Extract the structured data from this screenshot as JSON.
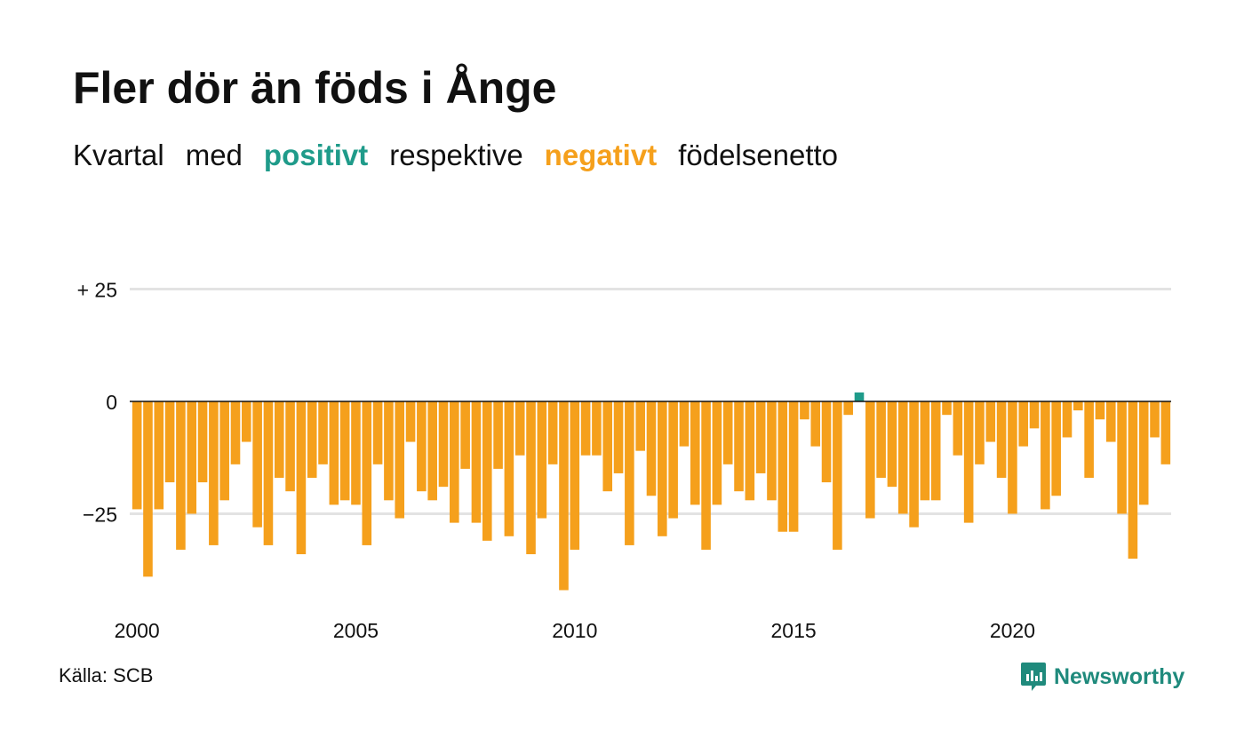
{
  "title": "Fler dör än föds i Ånge",
  "subtitle": {
    "part1": "Kvartal",
    "part2": "med",
    "positive": "positivt",
    "part3": "respektive",
    "negative": "negativt",
    "part4": "födelsenetto"
  },
  "source": "Källa: SCB",
  "brand": "Newsworthy",
  "colors": {
    "positive": "#1f9b8a",
    "negative": "#f5a01c",
    "grid": "#e3e3e3",
    "brand": "#1f8a7c"
  },
  "chart_data": {
    "type": "bar",
    "x_start": "2000 Q1",
    "frequency": "quarterly",
    "ylim": [
      -42,
      25
    ],
    "yticks": [
      25,
      0,
      -25
    ],
    "ytick_labels": [
      "+ 25",
      "0",
      "−25"
    ],
    "xtick_labels": [
      "2000",
      "2005",
      "2010",
      "2015",
      "2020"
    ],
    "values": [
      -24,
      -39,
      -24,
      -18,
      -33,
      -25,
      -18,
      -32,
      -22,
      -14,
      -9,
      -28,
      -32,
      -17,
      -20,
      -34,
      -17,
      -14,
      -23,
      -22,
      -23,
      -32,
      -14,
      -22,
      -26,
      -9,
      -20,
      -22,
      -19,
      -27,
      -15,
      -27,
      -31,
      -15,
      -30,
      -12,
      -34,
      -26,
      -14,
      -42,
      -33,
      -12,
      -12,
      -20,
      -16,
      -32,
      -11,
      -21,
      -30,
      -26,
      -10,
      -23,
      -33,
      -23,
      -14,
      -20,
      -22,
      -16,
      -22,
      -29,
      -29,
      -4,
      -10,
      -18,
      -33,
      -3,
      2,
      -26,
      -17,
      -19,
      -25,
      -28,
      -22,
      -22,
      -3,
      -12,
      -27,
      -14,
      -9,
      -17,
      -25,
      -10,
      -6,
      -24,
      -21,
      -8,
      -2,
      -17,
      -4,
      -9,
      -25,
      -35,
      -23,
      -8,
      -14
    ],
    "grid": true,
    "legend": "none"
  }
}
